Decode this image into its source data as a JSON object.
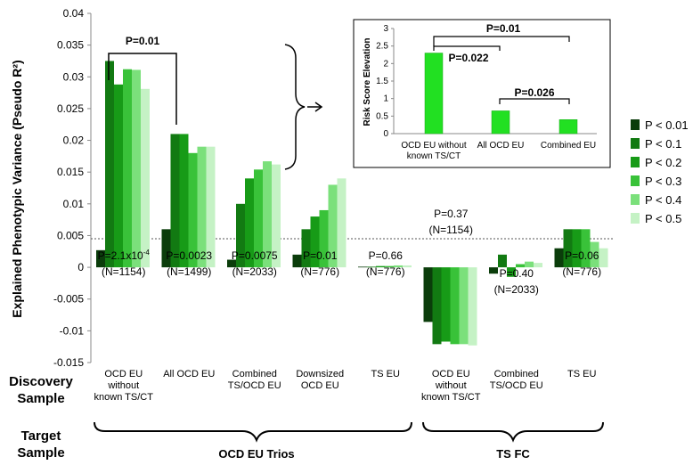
{
  "chart_data": [
    {
      "type": "bar",
      "ylabel": "Explained Phenotypic Variance (Pseudo R²)",
      "ylim": [
        -0.015,
        0.04
      ],
      "yticks": [
        "0.04",
        "0.035",
        "0.03",
        "0.025",
        "0.02",
        "0.015",
        "0.01",
        "0.005",
        "0",
        "-0.005",
        "-0.01",
        "-0.015"
      ],
      "grid": false,
      "legend_position": "right",
      "categories": [
        "OCD EU without known TS/CT",
        "All OCD EU",
        "Combined TS/OCD EU",
        "Downsized OCD EU",
        "TS EU",
        "OCD EU without known TS/CT",
        "Combined TS/OCD EU",
        "TS EU"
      ],
      "category_labels": [
        [
          "OCD EU",
          "without",
          "known TS/CT"
        ],
        [
          "All OCD EU"
        ],
        [
          "Combined",
          "TS/OCD EU"
        ],
        [
          "Downsized",
          "OCD EU"
        ],
        [
          "TS EU"
        ],
        [
          "OCD EU",
          "without",
          "known TS/CT"
        ],
        [
          "Combined",
          "TS/OCD EU"
        ],
        [
          "TS EU"
        ]
      ],
      "series": [
        {
          "name": "P < 0.01",
          "color": "#0b3d0b",
          "values": [
            0.0027,
            0.006,
            0.0012,
            0.002,
            0.0001,
            -0.0086,
            -0.001,
            0.003
          ]
        },
        {
          "name": "P < 0.1",
          "color": "#127a12",
          "values": [
            0.0325,
            0.021,
            0.01,
            0.006,
            0.0001,
            -0.0121,
            0.002,
            0.006
          ]
        },
        {
          "name": "P < 0.2",
          "color": "#179b17",
          "values": [
            0.0288,
            0.021,
            0.014,
            0.008,
            0.0002,
            -0.0117,
            -0.0015,
            0.006
          ]
        },
        {
          "name": "P < 0.3",
          "color": "#39c239",
          "values": [
            0.0312,
            0.018,
            0.0154,
            0.009,
            0.0002,
            -0.0121,
            0.0005,
            0.006
          ]
        },
        {
          "name": "P < 0.4",
          "color": "#7be07b",
          "values": [
            0.0311,
            0.019,
            0.0167,
            0.013,
            0.0003,
            -0.0121,
            0.0009,
            0.004
          ]
        },
        {
          "name": "P < 0.5",
          "color": "#c5f2c5",
          "values": [
            0.0281,
            0.019,
            0.0162,
            0.014,
            0.0003,
            -0.0123,
            0.0007,
            0.003
          ]
        }
      ],
      "annotations": [
        {
          "text": "P=2.1x10",
          "sup": "-4",
          "n": "(N=1154)"
        },
        {
          "text": "P=0.0023",
          "sup": "",
          "n": "(N=1499)"
        },
        {
          "text": "P=0.0075",
          "sup": "",
          "n": "(N=2033)"
        },
        {
          "text": "P=0.01",
          "sup": "",
          "n": "(N=776)"
        },
        {
          "text": "P=0.66",
          "sup": "",
          "n": "(N=776)"
        },
        {
          "text": "P=0.37",
          "sup": "",
          "n": "(N=1154)"
        },
        {
          "text": "P=0.40",
          "sup": "",
          "n": "(N=2033)"
        },
        {
          "text": "P=0.06",
          "sup": "",
          "n": "(N=776)"
        }
      ],
      "comparison_label": "P=0.01",
      "discovery_label": [
        "Discovery",
        "Sample"
      ],
      "target_label": [
        "Target",
        "Sample"
      ],
      "groups": [
        "OCD EU Trios",
        "TS FC"
      ]
    },
    {
      "type": "bar",
      "ylabel": "Risk Score Elevation",
      "ylim": [
        0,
        3
      ],
      "yticks": [
        "3",
        "2.5",
        "2",
        "1.5",
        "1",
        "0.5",
        "0"
      ],
      "categories": [
        [
          "OCD EU without",
          "known TS/CT"
        ],
        [
          "All OCD EU"
        ],
        [
          "Combined EU"
        ]
      ],
      "values": [
        2.3,
        0.65,
        0.4
      ],
      "color": "#22e022",
      "comparisons": [
        "P=0.01",
        "P=0.022",
        "P=0.026"
      ]
    }
  ]
}
